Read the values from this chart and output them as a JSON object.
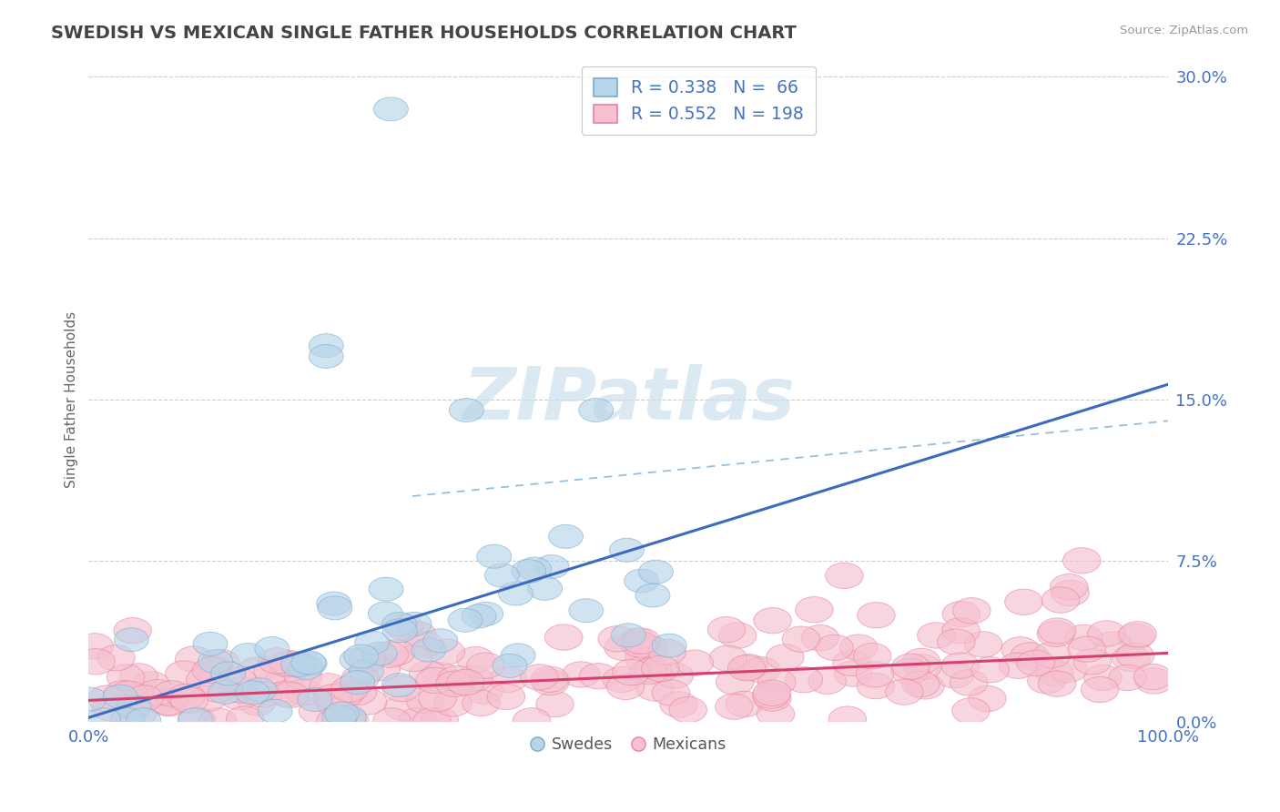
{
  "title": "SWEDISH VS MEXICAN SINGLE FATHER HOUSEHOLDS CORRELATION CHART",
  "source": "Source: ZipAtlas.com",
  "ylabel": "Single Father Households",
  "xlabel": "",
  "xlim": [
    0.0,
    100.0
  ],
  "ylim": [
    0.0,
    30.0
  ],
  "yticks": [
    0.0,
    7.5,
    15.0,
    22.5,
    30.0
  ],
  "xticks": [
    0.0,
    100.0
  ],
  "swedish_R": 0.338,
  "swedish_N": 66,
  "mexican_R": 0.552,
  "mexican_N": 198,
  "blue_scatter_face": "#b8d4e8",
  "blue_scatter_edge": "#7aabcc",
  "pink_scatter_face": "#f5c0d0",
  "pink_scatter_edge": "#e8829a",
  "trend_blue": "#3b6abf",
  "trend_pink": "#d44070",
  "dashed_color": "#8ab8d8",
  "background": "#ffffff",
  "grid_color": "#c8c8c8",
  "text_color": "#4472c4",
  "title_color": "#444444",
  "watermark_color": "#cde0ef",
  "legend_text_color": "#4472c4"
}
